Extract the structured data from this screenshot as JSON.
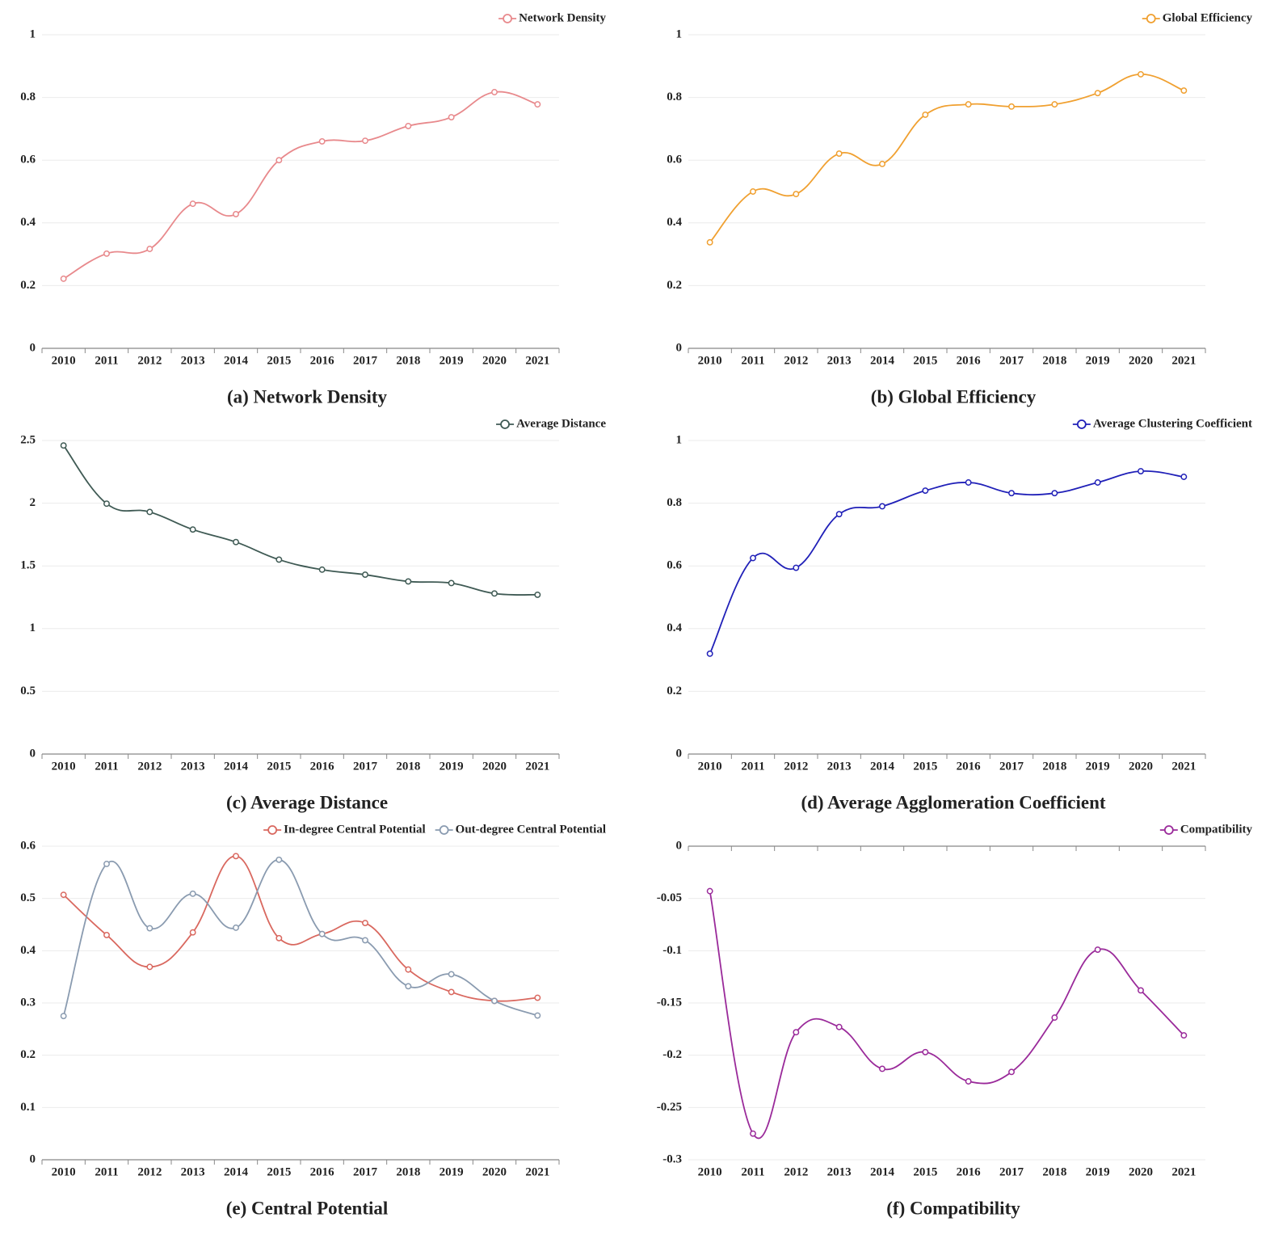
{
  "chart_data": [
    {
      "type": "line",
      "title": "(a) Network Density",
      "categories": [
        "2010",
        "2011",
        "2012",
        "2013",
        "2014",
        "2015",
        "2016",
        "2017",
        "2018",
        "2019",
        "2020",
        "2021"
      ],
      "series": [
        {
          "name": "Network Density",
          "color": "#e8898c",
          "values": [
            0.222,
            0.302,
            0.317,
            0.461,
            0.428,
            0.6,
            0.66,
            0.662,
            0.709,
            0.737,
            0.817,
            0.778
          ]
        }
      ],
      "ylim": [
        0,
        1
      ],
      "yticks": [
        0,
        0.2,
        0.4,
        0.6,
        0.8,
        1
      ],
      "grid": true
    },
    {
      "type": "line",
      "title": "(b) Global Efficiency",
      "categories": [
        "2010",
        "2011",
        "2012",
        "2013",
        "2014",
        "2015",
        "2016",
        "2017",
        "2018",
        "2019",
        "2020",
        "2021"
      ],
      "series": [
        {
          "name": "Global Efficiency",
          "color": "#f0a030",
          "values": [
            0.338,
            0.5,
            0.492,
            0.621,
            0.588,
            0.745,
            0.778,
            0.771,
            0.778,
            0.814,
            0.874,
            0.822
          ]
        }
      ],
      "ylim": [
        0,
        1
      ],
      "yticks": [
        0,
        0.2,
        0.4,
        0.6,
        0.8,
        1
      ],
      "grid": true
    },
    {
      "type": "line",
      "title": "(c) Average Distance",
      "categories": [
        "2010",
        "2011",
        "2012",
        "2013",
        "2014",
        "2015",
        "2016",
        "2017",
        "2018",
        "2019",
        "2020",
        "2021"
      ],
      "series": [
        {
          "name": "Average Distance",
          "color": "#3f5a54",
          "values": [
            2.46,
            1.996,
            1.93,
            1.79,
            1.69,
            1.55,
            1.47,
            1.43,
            1.376,
            1.363,
            1.28,
            1.27
          ]
        }
      ],
      "ylim": [
        0,
        2.5
      ],
      "yticks": [
        0,
        0.5,
        1,
        1.5,
        2,
        2.5
      ],
      "grid": true
    },
    {
      "type": "line",
      "title": "(d) Average Agglomeration Coefficient",
      "categories": [
        "2010",
        "2011",
        "2012",
        "2013",
        "2014",
        "2015",
        "2016",
        "2017",
        "2018",
        "2019",
        "2020",
        "2021"
      ],
      "series": [
        {
          "name": "Average Clustering Coefficient",
          "color": "#2020b8",
          "values": [
            0.32,
            0.625,
            0.594,
            0.765,
            0.79,
            0.84,
            0.866,
            0.832,
            0.832,
            0.866,
            0.902,
            0.884
          ]
        }
      ],
      "ylim": [
        0,
        1
      ],
      "yticks": [
        0,
        0.2,
        0.4,
        0.6,
        0.8,
        1
      ],
      "grid": true
    },
    {
      "type": "line",
      "title": "(e) Central Potential",
      "categories": [
        "2010",
        "2011",
        "2012",
        "2013",
        "2014",
        "2015",
        "2016",
        "2017",
        "2018",
        "2019",
        "2020",
        "2021"
      ],
      "series": [
        {
          "name": "In-degree Central Potential",
          "color": "#d9685f",
          "values": [
            0.507,
            0.43,
            0.369,
            0.435,
            0.581,
            0.424,
            0.432,
            0.453,
            0.364,
            0.321,
            0.304,
            0.31
          ]
        },
        {
          "name": "Out-degree Central Potential",
          "color": "#8a9bb0",
          "values": [
            0.275,
            0.566,
            0.443,
            0.509,
            0.444,
            0.574,
            0.432,
            0.42,
            0.332,
            0.355,
            0.304,
            0.276
          ]
        }
      ],
      "ylim": [
        0,
        0.6
      ],
      "yticks": [
        0,
        0.1,
        0.2,
        0.3,
        0.4,
        0.5,
        0.6
      ],
      "grid": true
    },
    {
      "type": "line",
      "title": "(f) Compatibility",
      "categories": [
        "2010",
        "2011",
        "2012",
        "2013",
        "2014",
        "2015",
        "2016",
        "2017",
        "2018",
        "2019",
        "2020",
        "2021"
      ],
      "series": [
        {
          "name": "Compatibility",
          "color": "#9a2a9a",
          "values": [
            -0.043,
            -0.275,
            -0.178,
            -0.173,
            -0.213,
            -0.197,
            -0.225,
            -0.216,
            -0.164,
            -0.099,
            -0.138,
            -0.181
          ]
        }
      ],
      "ylim": [
        -0.3,
        0
      ],
      "yticks": [
        -0.3,
        -0.25,
        -0.2,
        -0.15,
        -0.1,
        -0.05,
        0
      ],
      "grid": true
    }
  ]
}
